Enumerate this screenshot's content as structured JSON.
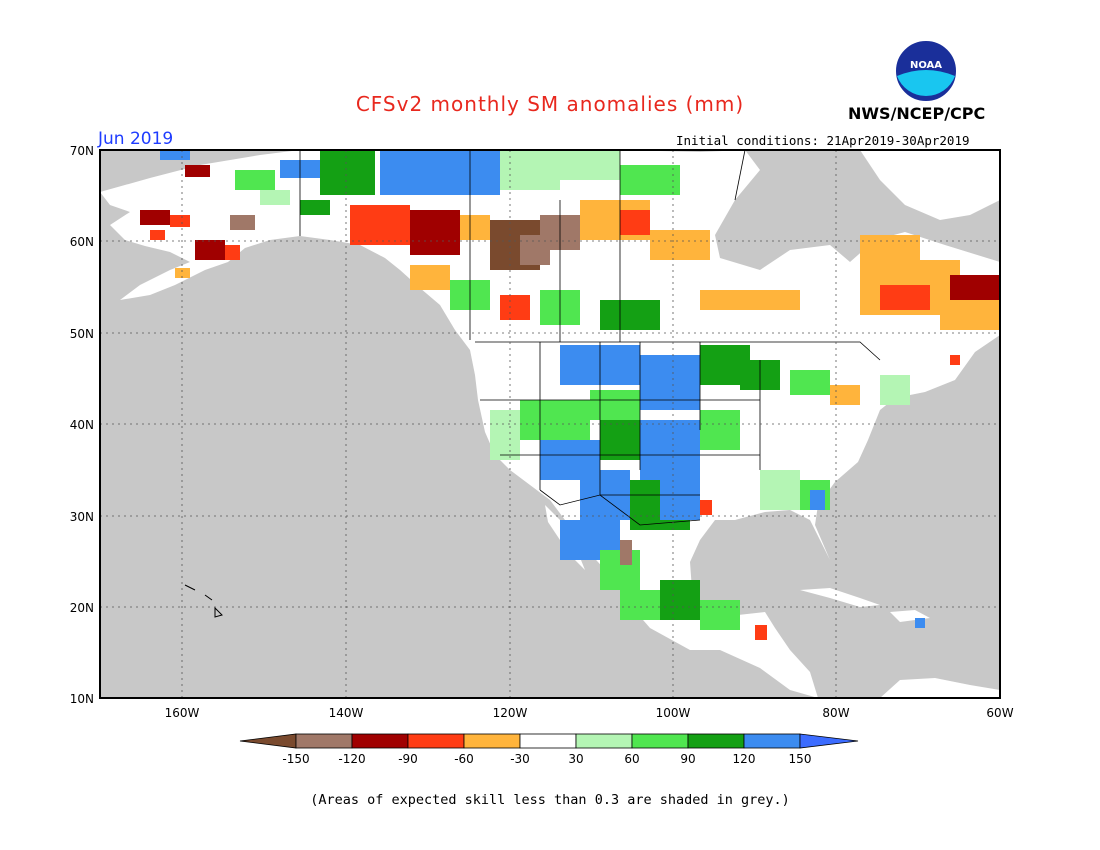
{
  "title": "CFSv2 monthly SM anomalies (mm)",
  "forecast_month": "Jun 2019",
  "initial_conditions": "Initial conditions: 21Apr2019-30Apr2019",
  "agency": "NWS/NCEP/CPC",
  "logo_text": "NOAA",
  "footnote": "(Areas of expected skill less than 0.3 are shaded in grey.)",
  "map": {
    "lon_labels": [
      "160W",
      "140W",
      "120W",
      "100W",
      "80W",
      "60W"
    ],
    "lat_labels": [
      "70N",
      "60N",
      "50N",
      "40N",
      "30N",
      "20N",
      "10N"
    ],
    "colors": {
      "grey": "#c8c8c8",
      "land": "#ffffff",
      "border": "#000000"
    }
  },
  "legend": {
    "tick_labels": [
      "-150",
      "-120",
      "-90",
      "-60",
      "-30",
      "30",
      "60",
      "90",
      "120",
      "150"
    ],
    "colors": [
      "#7a4a2e",
      "#a07868",
      "#a00000",
      "#ff3c14",
      "#ffb43c",
      "#ffffff",
      "#b4f5b4",
      "#50e650",
      "#14a014",
      "#3c8cf0",
      "#3c6cff"
    ]
  }
}
